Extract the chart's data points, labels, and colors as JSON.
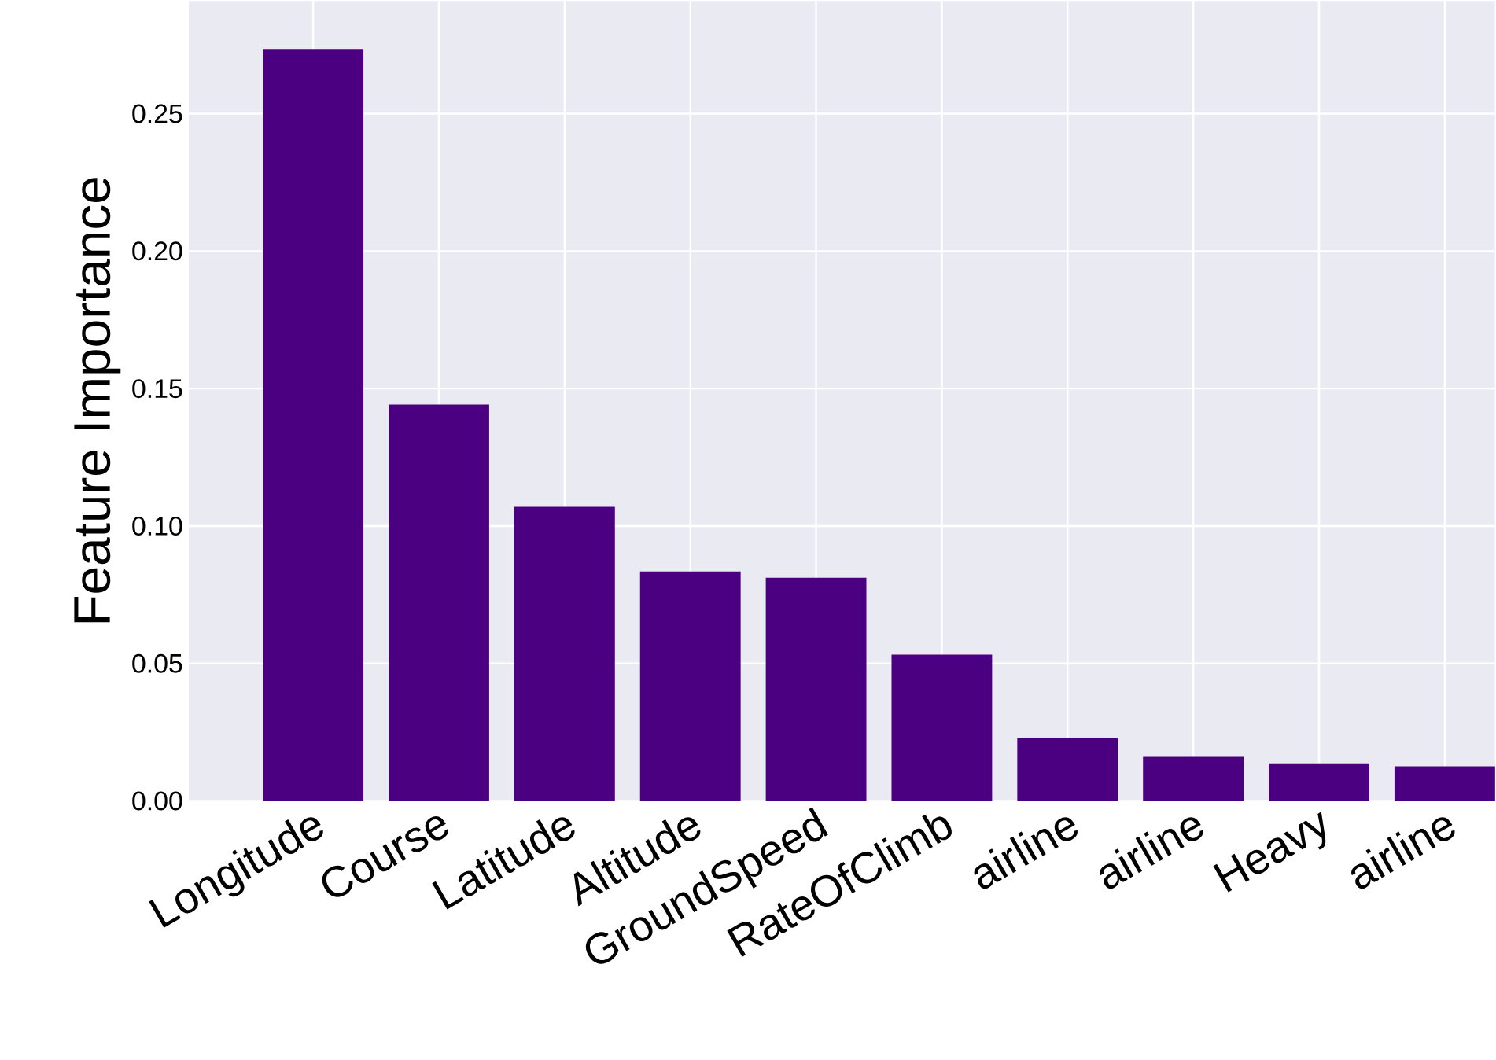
{
  "chart_data": {
    "type": "bar",
    "ylabel": "Feature Importance",
    "categories": [
      "Longitude",
      "Course",
      "Latitude",
      "Altitude",
      "GroundSpeed",
      "RateOfClimb",
      "airline",
      "airline",
      "Heavy",
      "airline"
    ],
    "values": [
      0.2735,
      0.1442,
      0.107,
      0.0835,
      0.0812,
      0.0532,
      0.0229,
      0.016,
      0.0137,
      0.0126
    ],
    "color": "#4b0082",
    "ylim": [
      0,
      0.291
    ],
    "yticks": [
      {
        "value": 0,
        "label": "0.00"
      },
      {
        "value": 0.05,
        "label": "0.05"
      },
      {
        "value": 0.1,
        "label": "0.10"
      },
      {
        "value": 0.15,
        "label": "0.15"
      },
      {
        "value": 0.2,
        "label": "0.20"
      },
      {
        "value": 0.25,
        "label": "0.25"
      }
    ],
    "grid": true
  }
}
